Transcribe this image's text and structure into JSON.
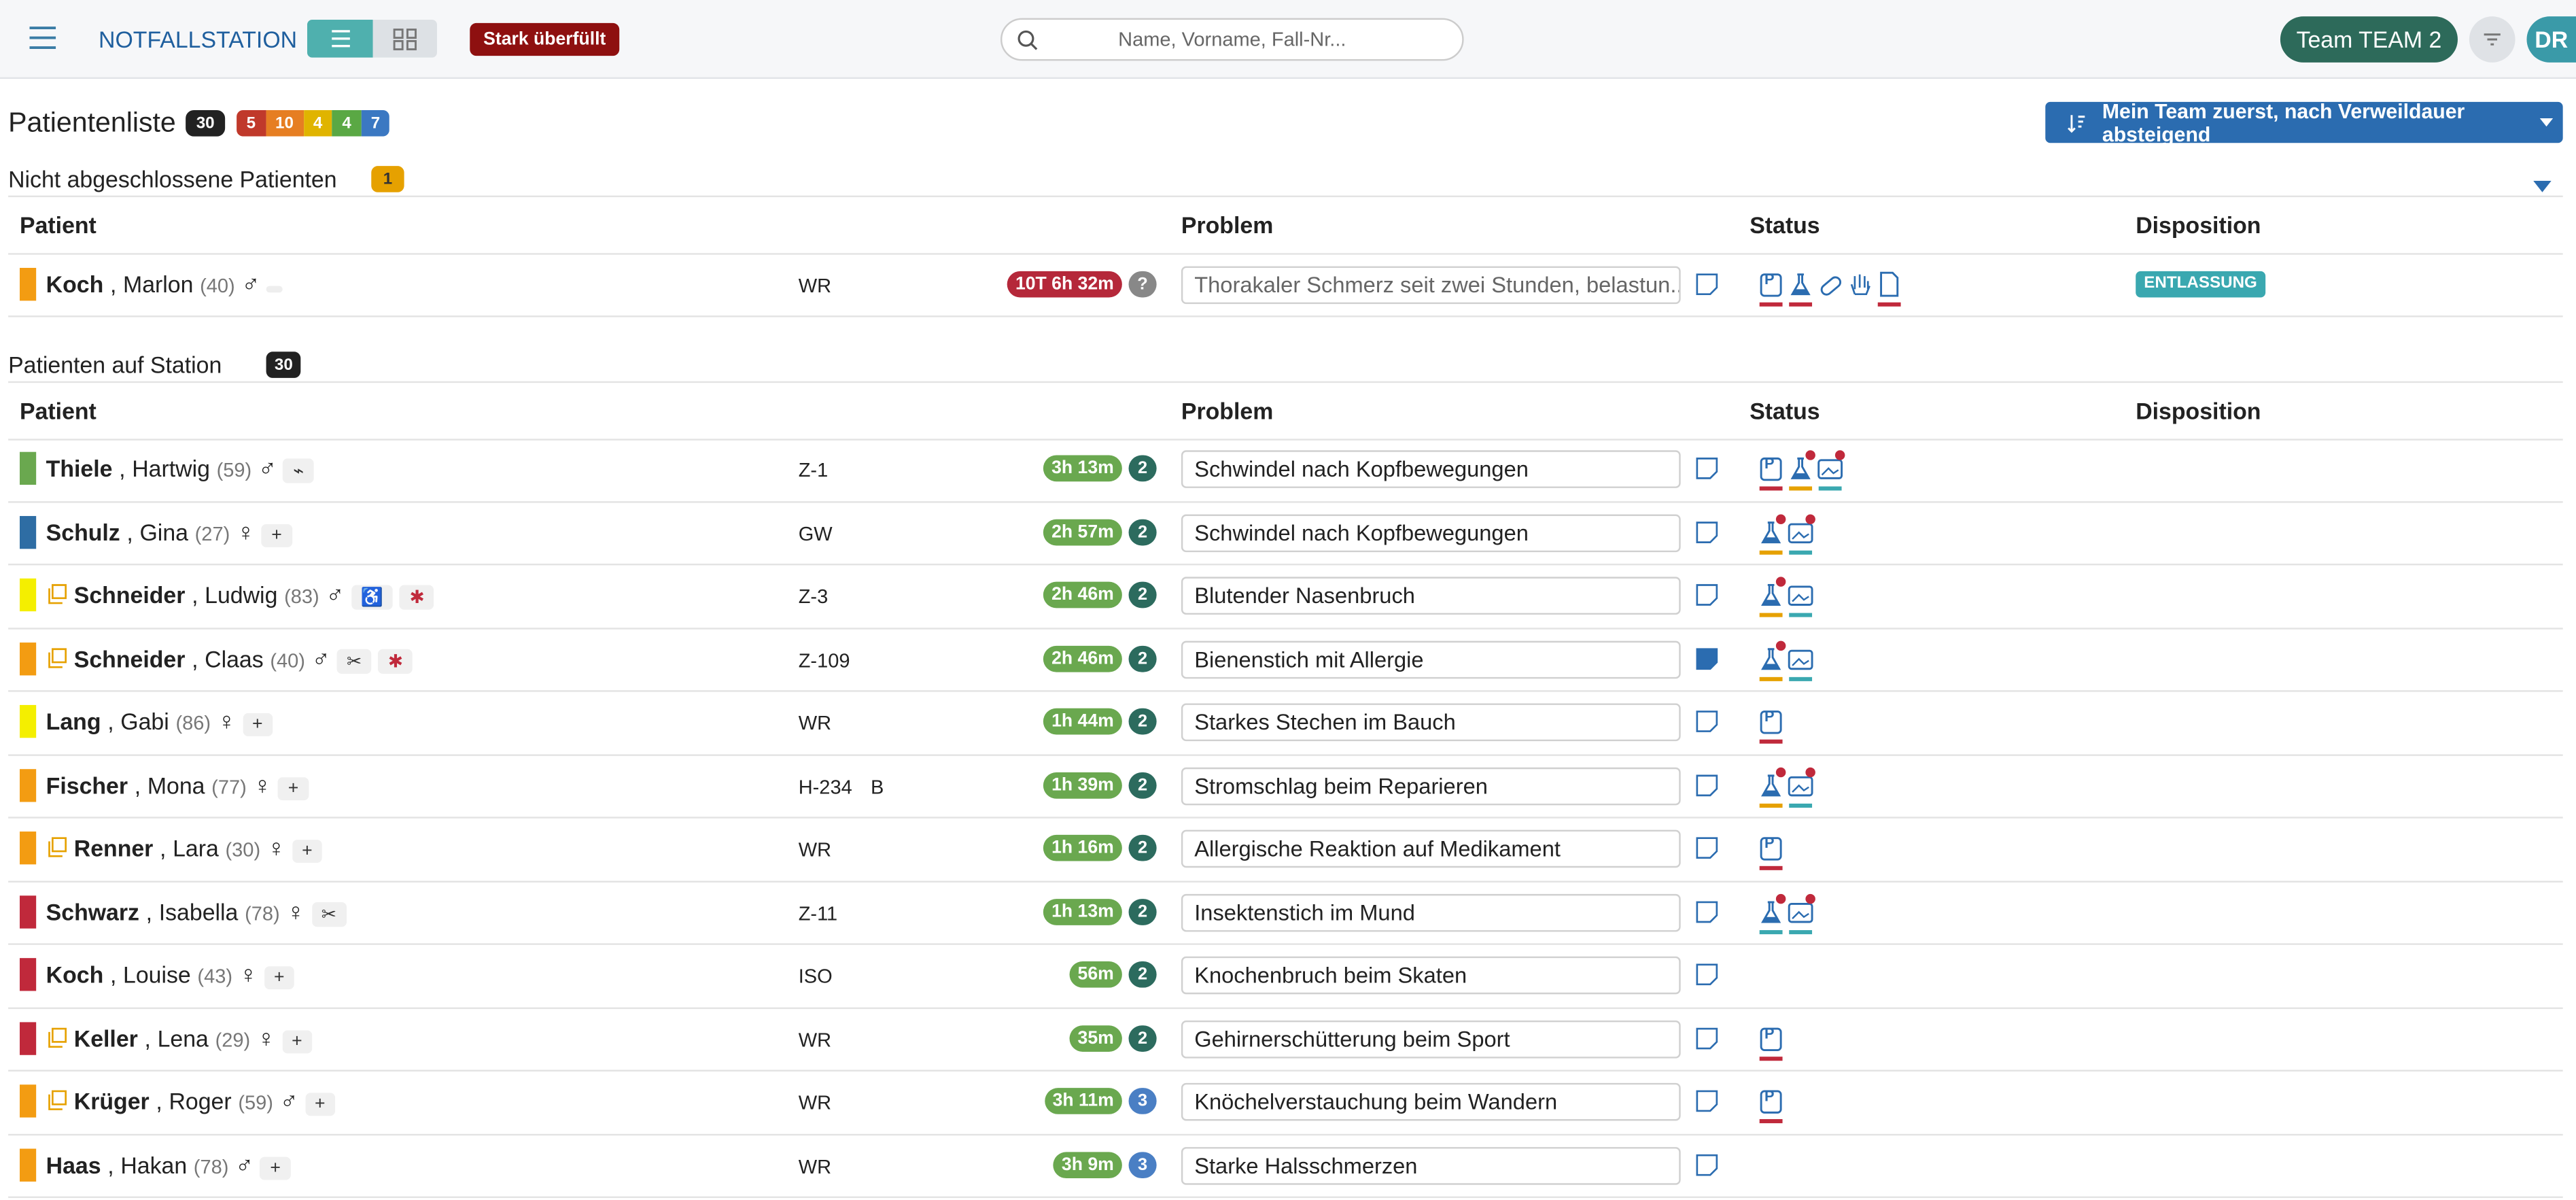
{
  "header": {
    "title": "NOTFALLSTATION",
    "load_badge": "Stark überfüllt",
    "search_placeholder": "Name, Vorname, Fall-Nr...",
    "team": "Team TEAM 2",
    "avatar": "DR"
  },
  "list": {
    "title": "Patientenliste",
    "total": 30,
    "triage_counts": [
      {
        "value": 5,
        "color": "#c0392b"
      },
      {
        "value": 10,
        "color": "#e67e22"
      },
      {
        "value": 4,
        "color": "#e0b400"
      },
      {
        "value": 4,
        "color": "#5aa844"
      },
      {
        "value": 7,
        "color": "#3b78c2"
      }
    ],
    "sort": "Mein Team zuerst, nach Verweildauer absteigend"
  },
  "columns": [
    "Patient",
    "Problem",
    "Status",
    "Disposition"
  ],
  "open_section": {
    "title": "Nicht abgeschlossene Patienten",
    "count": 1,
    "rows": [
      {
        "last": "Koch",
        "first": "Marlon",
        "age": "(40)",
        "sex": "♂",
        "triage": "#f39c12",
        "copy": false,
        "tags": [],
        "room": "WR",
        "extra": "",
        "time": "10T 6h 32m",
        "time_color": "#b5283a",
        "count": "?",
        "count_color": "#888888",
        "problem": "Thorakaler Schmerz seit zwei Stunden, belastun...",
        "note_filled": false,
        "status": [
          {
            "kind": "P",
            "label": "P",
            "line": "#c0293b",
            "dot": false
          },
          {
            "kind": "lab",
            "line": "#c0293b",
            "dot": false
          },
          {
            "kind": "pill",
            "line": "",
            "dot": false
          },
          {
            "kind": "hand",
            "line": "",
            "dot": false
          },
          {
            "kind": "doc",
            "line": "#c0293b",
            "dot": false
          }
        ],
        "disposition": "ENTLASSUNG"
      }
    ]
  },
  "station_section": {
    "title": "Patienten auf Station",
    "count": 30,
    "rows": [
      {
        "last": "Thiele",
        "first": "Hartwig",
        "age": "(59)",
        "sex": "♂",
        "triage": "#6aa84f",
        "copy": false,
        "tags": [
          "⌁"
        ],
        "room": "Z-1",
        "extra": "",
        "time": "3h 13m",
        "time_color": "#6aa84f",
        "count": 2,
        "count_color": "#2c6b5e",
        "problem": "Schwindel nach Kopfbewegungen",
        "note_filled": false,
        "status": [
          {
            "kind": "P",
            "label": "P",
            "line": "#c0293b",
            "dot": false
          },
          {
            "kind": "lab",
            "line": "#e6a100",
            "dot": true
          },
          {
            "kind": "img",
            "line": "#3aa8b0",
            "dot": true
          }
        ]
      },
      {
        "last": "Schulz",
        "first": "Gina",
        "age": "(27)",
        "sex": "♀",
        "triage": "#2e6da4",
        "copy": false,
        "tags": [
          "+"
        ],
        "room": "GW",
        "extra": "",
        "time": "2h 57m",
        "time_color": "#6aa84f",
        "count": 2,
        "count_color": "#2c6b5e",
        "problem": "Schwindel nach Kopfbewegungen",
        "note_filled": false,
        "status": [
          {
            "kind": "lab",
            "line": "#e6a100",
            "dot": true
          },
          {
            "kind": "img",
            "line": "#3aa8b0",
            "dot": true
          }
        ]
      },
      {
        "last": "Schneider",
        "first": "Ludwig",
        "age": "(83)",
        "sex": "♂",
        "triage": "#f4ef00",
        "copy": true,
        "tags": [
          "♿",
          "✱"
        ],
        "room": "Z-3",
        "extra": "",
        "time": "2h 46m",
        "time_color": "#6aa84f",
        "count": 2,
        "count_color": "#2c6b5e",
        "problem": "Blutender Nasenbruch",
        "note_filled": false,
        "status": [
          {
            "kind": "lab",
            "line": "#e6a100",
            "dot": true
          },
          {
            "kind": "img",
            "line": "#3aa8b0",
            "dot": false
          }
        ]
      },
      {
        "last": "Schneider",
        "first": "Claas",
        "age": "(40)",
        "sex": "♂",
        "triage": "#f39c12",
        "copy": true,
        "tags": [
          "✂",
          "✱"
        ],
        "room": "Z-109",
        "extra": "",
        "time": "2h 46m",
        "time_color": "#6aa84f",
        "count": 2,
        "count_color": "#2c6b5e",
        "problem": "Bienenstich mit Allergie",
        "note_filled": true,
        "status": [
          {
            "kind": "lab",
            "line": "#e6a100",
            "dot": true
          },
          {
            "kind": "img",
            "line": "#3aa8b0",
            "dot": false
          }
        ]
      },
      {
        "last": "Lang",
        "first": "Gabi",
        "age": "(86)",
        "sex": "♀",
        "triage": "#f4ef00",
        "copy": false,
        "tags": [
          "+"
        ],
        "room": "WR",
        "extra": "",
        "time": "1h 44m",
        "time_color": "#6aa84f",
        "count": 2,
        "count_color": "#2c6b5e",
        "problem": "Starkes Stechen im Bauch",
        "note_filled": false,
        "status": [
          {
            "kind": "P",
            "label": "P",
            "line": "#c0293b",
            "dot": false
          }
        ]
      },
      {
        "last": "Fischer",
        "first": "Mona",
        "age": "(77)",
        "sex": "♀",
        "triage": "#f39c12",
        "copy": false,
        "tags": [
          "+"
        ],
        "room": "H-234",
        "extra": "B",
        "time": "1h 39m",
        "time_color": "#6aa84f",
        "count": 2,
        "count_color": "#2c6b5e",
        "problem": "Stromschlag beim Reparieren",
        "note_filled": false,
        "status": [
          {
            "kind": "lab",
            "line": "#e6a100",
            "dot": true
          },
          {
            "kind": "img",
            "line": "#3aa8b0",
            "dot": true
          }
        ]
      },
      {
        "last": "Renner",
        "first": "Lara",
        "age": "(30)",
        "sex": "♀",
        "triage": "#f39c12",
        "copy": true,
        "tags": [
          "+"
        ],
        "room": "WR",
        "extra": "",
        "time": "1h 16m",
        "time_color": "#6aa84f",
        "count": 2,
        "count_color": "#2c6b5e",
        "problem": "Allergische Reaktion auf Medikament",
        "note_filled": false,
        "status": [
          {
            "kind": "P",
            "label": "P",
            "line": "#c0293b",
            "dot": false
          }
        ]
      },
      {
        "last": "Schwarz",
        "first": "Isabella",
        "age": "(78)",
        "sex": "♀",
        "triage": "#c0293b",
        "copy": false,
        "tags": [
          "✂"
        ],
        "room": "Z-11",
        "extra": "",
        "time": "1h 13m",
        "time_color": "#6aa84f",
        "count": 2,
        "count_color": "#2c6b5e",
        "problem": "Insektenstich im Mund",
        "note_filled": false,
        "status": [
          {
            "kind": "lab",
            "line": "#3aa8b0",
            "dot": true
          },
          {
            "kind": "img",
            "line": "#3aa8b0",
            "dot": true
          }
        ]
      },
      {
        "last": "Koch",
        "first": "Louise",
        "age": "(43)",
        "sex": "♀",
        "triage": "#c0293b",
        "copy": false,
        "tags": [
          "+"
        ],
        "room": "ISO",
        "extra": "",
        "time": "56m",
        "time_color": "#6aa84f",
        "count": 2,
        "count_color": "#2c6b5e",
        "problem": "Knochenbruch beim Skaten",
        "note_filled": false,
        "status": []
      },
      {
        "last": "Keller",
        "first": "Lena",
        "age": "(29)",
        "sex": "♀",
        "triage": "#c0293b",
        "copy": true,
        "tags": [
          "+"
        ],
        "room": "WR",
        "extra": "",
        "time": "35m",
        "time_color": "#6aa84f",
        "count": 2,
        "count_color": "#2c6b5e",
        "problem": "Gehirnerschütterung beim Sport",
        "note_filled": false,
        "status": [
          {
            "kind": "P",
            "label": "P",
            "line": "#c0293b",
            "dot": false
          }
        ]
      },
      {
        "last": "Krüger",
        "first": "Roger",
        "age": "(59)",
        "sex": "♂",
        "triage": "#f39c12",
        "copy": true,
        "tags": [
          "+"
        ],
        "room": "WR",
        "extra": "",
        "time": "3h 11m",
        "time_color": "#6aa84f",
        "count": 3,
        "count_color": "#4a7fc4",
        "problem": "Knöchelverstauchung beim Wandern",
        "note_filled": false,
        "status": [
          {
            "kind": "P",
            "label": "P",
            "line": "#c0293b",
            "dot": false
          }
        ]
      },
      {
        "last": "Haas",
        "first": "Hakan",
        "age": "(78)",
        "sex": "♂",
        "triage": "#f39c12",
        "copy": false,
        "tags": [
          "+"
        ],
        "room": "WR",
        "extra": "",
        "time": "3h 9m",
        "time_color": "#6aa84f",
        "count": 3,
        "count_color": "#4a7fc4",
        "problem": "Starke Halsschmerzen",
        "note_filled": false,
        "status": []
      }
    ]
  }
}
